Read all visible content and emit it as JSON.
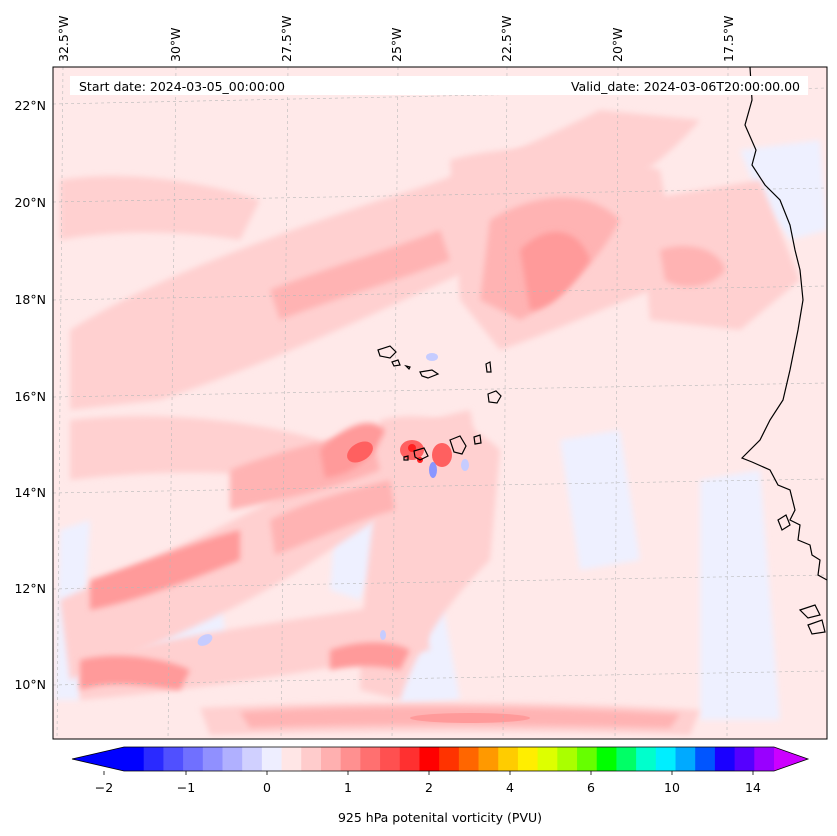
{
  "header": {
    "start_date": "Start date: 2024-03-05_00:00:00",
    "valid_date": "Valid_date: 2024-03-06T20:00:00.00"
  },
  "map": {
    "lon_labels": [
      "32.5°W",
      "30°W",
      "27.5°W",
      "25°W",
      "22.5°W",
      "20°W",
      "17.5°W"
    ],
    "lat_labels": [
      "22°N",
      "20°N",
      "18°N",
      "16°N",
      "14°N",
      "12°N",
      "10°N"
    ],
    "gridlines": "dashed-gray",
    "coastline_color": "#000000"
  },
  "colorbar": {
    "label": "925 hPa potenital vorticity (PVU)",
    "tick_labels": [
      "−2",
      "−1",
      "0",
      "1",
      "2",
      "4",
      "6",
      "10",
      "14"
    ],
    "extend": "both",
    "colors": [
      "#0000ff",
      "#2a2aff",
      "#5050ff",
      "#7070ff",
      "#9090ff",
      "#b0b0ff",
      "#d0d0ff",
      "#eeeeff",
      "#ffe6e6",
      "#ffcccc",
      "#ffb0b0",
      "#ff9090",
      "#ff7070",
      "#ff5050",
      "#ff3030",
      "#ff0000",
      "#ff3300",
      "#ff6600",
      "#ff9900",
      "#ffcc00",
      "#ffee00",
      "#ddff00",
      "#aaff00",
      "#66ff00",
      "#00ff00",
      "#00ff66",
      "#00ffcc",
      "#00eeff",
      "#00aaff",
      "#0055ff",
      "#1a00ff",
      "#5500ff",
      "#9900ff"
    ],
    "neg_end_color": "#0000ff",
    "pos_end_color": "#cc00ff"
  },
  "field": {
    "background": "#ffe9e9",
    "light_pink": "#ffd0d0",
    "pink": "#ffb3b3",
    "salmon": "#ff9a9a",
    "red": "#ff6060",
    "dark_red": "#ff2020",
    "light_blue": "#eef0ff",
    "blue": "#c6ccff",
    "deep_blue": "#8a96ff"
  }
}
